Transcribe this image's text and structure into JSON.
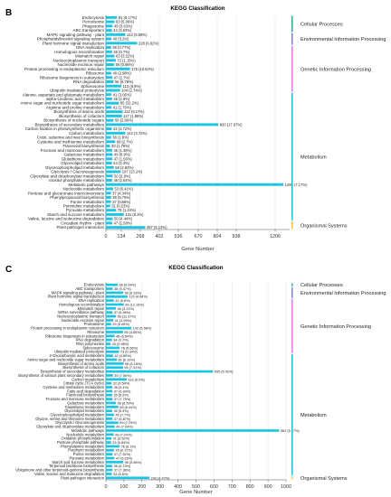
{
  "chart_data": [
    {
      "type": "bar",
      "panel": "B",
      "title": "KEGG Classification",
      "xlabel": "Gene Number",
      "xlim": [
        0,
        1340
      ],
      "xticks": [
        "0",
        "134",
        "268",
        "402",
        "536",
        "670",
        "804",
        "938",
        "1206"
      ],
      "bar_color": "#1ec6e6",
      "groups": [
        {
          "name": "Cellular Processes",
          "color": "#2ab894",
          "categories": [
            "Endocytosis",
            "Peroxisome",
            "Phagosome",
            "ABC transporters"
          ],
          "values": [
            81,
            63,
            49,
            44
          ],
          "labels": [
            "81 (6.17%)",
            "63 (5.06%)",
            "49 (3.63%)",
            "44 (3.63%)"
          ]
        },
        {
          "name": "Environmental Information Processing",
          "color": "#8a87d8",
          "categories": [
            "MAPK signaling pathway - plant",
            "Phosphatidylinositol signaling system",
            "Plant hormone signal transduction"
          ],
          "values": [
            142,
            40,
            228
          ],
          "labels": [
            "142 (5.59%)",
            "40 (3.2%)",
            "228 (6.92%)"
          ]
        },
        {
          "name": "Genetic Information Processing",
          "color": "#f07ae0",
          "categories": [
            "DNA replication",
            "Homologous recombination",
            "Mismatch repair",
            "Nucleocytoplasmic transport",
            "Nucleotide excision repair",
            "Protein processing in endoplasmic reticulum",
            "Ribosome",
            "Ribosome biogenesis in eukaryotes",
            "RNA degradation",
            "Spliceosome",
            "Ubiquitin mediated proteolysis"
          ],
          "values": [
            38,
            45,
            63,
            72,
            60,
            175,
            40,
            47,
            56,
            113,
            104
          ],
          "labels": [
            "38 (0.77%)",
            "45 (0.7%)",
            "63 (3.22%)",
            "72 (1.15%)",
            "60 (0.98%)",
            "175 (10.53%)",
            "40 (2.98%)",
            "47 (1.7%)",
            "56 (6.78%)",
            "113 (8.9%)",
            "104 (2.74%)"
          ]
        },
        {
          "name": "Metabolism",
          "color": "#1ec6e6",
          "categories": [
            "Alanine, aspartate and glutamate metabolism",
            "alpha-Linolenic acid metabolism",
            "Amino sugar and nucleotide sugar metabolism",
            "Arginine and proline metabolism",
            "Biosynthesis of amino acids",
            "Biosynthesis of cofactors",
            "Biosynthesis of nucleotide sugars",
            "Biosynthesis of secondary metabolites",
            "Carbon fixation in photosynthetic organisms",
            "Carbon metabolism",
            "Cutin, suberine and wax biosynthesis",
            "Cysteine and methionine metabolism",
            "Flavonoid biosynthesis",
            "Fructose and mannose metabolism",
            "Galactose metabolism",
            "Glutathione metabolism",
            "Glycerolipid metabolism",
            "Glycerophospholipid metabolism",
            "Glycolysis / Gluconeogenesis",
            "Glyoxylate and dicarboxylate metabolism",
            "Inositol phosphate metabolism",
            "Metabolic pathways",
            "Nucleotide metabolism",
            "Pentose and glucuronate interconversions",
            "Phenylpropanoid biosynthesis",
            "Purine metabolism",
            "Pyrimidine metabolism",
            "Pyruvate metabolism",
            "Starch and sucrose metabolism",
            "Valine, leucine and isoleucine degradation"
          ],
          "values": [
            41,
            45,
            95,
            41,
            122,
            117,
            56,
            820,
            43,
            142,
            38,
            68,
            30,
            46,
            49,
            47,
            44,
            58,
            107,
            50,
            46,
            1295,
            53,
            37,
            38,
            37,
            31,
            75,
            131,
            50
          ],
          "labels": [
            "41 (3.06%)",
            "45 (2.9%)",
            "95 (32.2%)",
            "41 (1.79%)",
            "122 (6.17%)",
            "117 (1.89%)",
            "56 (2.86%)",
            "820 (17.67%)",
            "43 (1.72%)",
            "142 (3.72%)",
            "38 (1.8%)",
            "68 (2.7%)",
            "30 (1.78%)",
            "46 (1.38%)",
            "49 (0.9%)",
            "47 (1.56%)",
            "44 (3.3%)",
            "58 (2.82%)",
            "107 (13.1%)",
            "50 (2.8%)",
            "46 (2.54%)",
            "1295 (7.17%)",
            "53 (6.41%)",
            "37 (4.34%)",
            "38 (5.75%)",
            "37 (0.58%)",
            "31 (0.23%)",
            "75 (1.24%)",
            "131 (8.3%)",
            "50 (4.44%)"
          ]
        },
        {
          "name": "Organismal Systems",
          "color": "#f5c842",
          "categories": [
            "Circadian rhythm - plant",
            "Plant-pathogen interaction"
          ],
          "values": [
            47,
            287
          ],
          "labels": [
            "47 (1.58%)",
            "287 (5.13%)"
          ]
        }
      ]
    },
    {
      "type": "bar",
      "panel": "C",
      "title": "KEGG Classification",
      "xlabel": "Gene Number",
      "xlim": [
        0,
        1000
      ],
      "xticks": [
        "0",
        "100",
        "200",
        "300",
        "400",
        "500",
        "600",
        "700",
        "800",
        "900",
        "1000"
      ],
      "bar_color": "#1ec6e6",
      "groups": [
        {
          "name": "Cellular Processes",
          "color": "#2ab894",
          "categories": [
            "Endocytosis"
          ],
          "values": [
            66
          ],
          "labels": [
            "66 (9.69%)"
          ]
        },
        {
          "name": "Environmental Information Processing",
          "color": "#8a87d8",
          "categories": [
            "ABC transporters",
            "MAPK signaling pathway - plant",
            "Plant hormone signal transduction"
          ],
          "values": [
            38,
            96,
            120
          ],
          "labels": [
            "38 (5.47%)",
            "96 (6.33%)",
            "120 (4.84%)"
          ]
        },
        {
          "name": "Genetic Information Processing",
          "color": "#f07ae0",
          "categories": [
            "DNA replication",
            "Homologous recombination",
            "Mismatch repair",
            "mRNA surveillance pathway",
            "Nucleocytoplasmic transport",
            "Nucleotide excision repair",
            "Proteasome",
            "Protein processing in endoplasmic reticulum",
            "Ribosome",
            "Ribosome biogenesis in eukaryotes",
            "RNA degradation",
            "RNA polymerase",
            "Spliceosome",
            "Ubiquitin mediated proteolysis"
          ],
          "values": [
            44,
            99,
            56,
            37,
            56,
            41,
            29,
            142,
            95,
            48,
            34,
            26,
            76,
            73
          ],
          "labels": [
            "44 (6.5%)",
            "99 (12.16%)",
            "56 (3.11%)",
            "37 (6.46%)",
            "56 (11.37%)",
            "41 (2.99%)",
            "29 (6.05%)",
            "142 (5.58%)",
            "95 (4.85%)",
            "48 (6.54%)",
            "34 (0.7%)",
            "26 (0.98%)",
            "76 (5.66%)",
            "73 (0.34%)"
          ]
        },
        {
          "name": "Metabolism",
          "color": "#1ec6e6",
          "categories": [
            "2-Oxocarboxylic acid metabolism",
            "Amino sugar and nucleotide sugar metabolism",
            "Biosynthesis of amino acids",
            "Biosynthesis of cofactors",
            "Biosynthesis of secondary metabolites",
            "Biosynthesis of various plant secondary metabolites",
            "Carbon metabolism",
            "Citrate cycle (TCA cycle)",
            "Cysteine and methionine metabolism",
            "Fatty acid degradation",
            "Flavonoid biosynthesis",
            "Fructose and mannose metabolism",
            "Galactose metabolism",
            "Glutathione metabolism",
            "Glycerolipid metabolism",
            "Glycerophospholipid metabolism",
            "Glycine, serine and threonine metabolism",
            "Glycolysis / Gluconeogenesis",
            "Glyoxylate and dicarboxylate metabolism",
            "Metabolic pathways",
            "Nucleotide metabolism",
            "Oxidative phosphorylation",
            "Pentose phosphate pathway",
            "Phenylalanine metabolism",
            "Porphyrin metabolism",
            "Purine metabolism",
            "Pyruvate metabolism",
            "Starch and sucrose metabolism",
            "Terpenoid backbone biosynthesis",
            "Ubiquinone and other terpenoid-quinone biosynthesis",
            "Valine, leucine and isoleucine degradation"
          ],
          "values": [
            40,
            60,
            98,
            95,
            595,
            39,
            116,
            32,
            36,
            37,
            35,
            37,
            56,
            69,
            35,
            45,
            37,
            69,
            49,
            962,
            43,
            31,
            29,
            76,
            45,
            37,
            47,
            96,
            36,
            37,
            33
          ],
          "labels": [
            "40 (3.85%)",
            "60 (6.19%)",
            "98 (8.16%)",
            "95 (7.31%)",
            "595 (5.42%)",
            "39 (7.06%)",
            "116 (6.9%)",
            "32 (6.54%)",
            "36 (5.1%)",
            "37 (6.34%)",
            "35 (5.2%)",
            "37 (7.75%)",
            "56 (6.59%)",
            "69 (6.44%)",
            "35 (5.4%)",
            "45 (7.7%)",
            "37 (6.87%)",
            "69 (7.29%)",
            "49 (7.64%)",
            "962 (5.27%)",
            "43 (7.24%)",
            "31 (6.52%)",
            "29 (6.84%)",
            "76 (6.1%)",
            "45 (0.72%)",
            "37 (7.02%)",
            "47 (6.26%)",
            "96 (5.96%)",
            "36 (6.73%)",
            "37 (7.38%)",
            "33 (6.6%)"
          ]
        },
        {
          "name": "Organismal Systems",
          "color": "#f5c842",
          "categories": [
            "Plant-pathogen interaction"
          ],
          "values": [
            242
          ],
          "labels": [
            "242 (4.47%)"
          ]
        }
      ]
    }
  ]
}
